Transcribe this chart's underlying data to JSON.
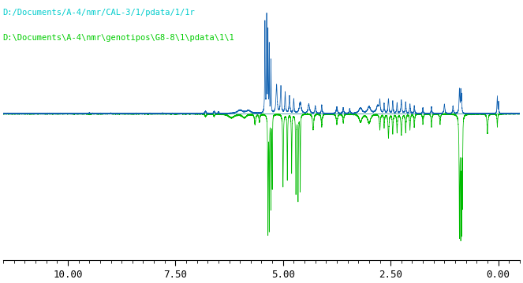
{
  "title_blue": "D:/Documents/A-4/nmr/CAL-3/1/pdata/1/1r",
  "title_green": "D:\\Documents\\A-4\\nmr\\genotipos\\G8-8\\1\\pdata\\1\\1",
  "xmin": -0.5,
  "xmax": 11.5,
  "xlabel_ticks": [
    10.0,
    7.5,
    5.0,
    2.5,
    0.0
  ],
  "blue_color": "#1060b0",
  "green_color": "#00bb00",
  "bg_color": "#ffffff",
  "label_color_blue": "#00cccc",
  "label_color_green": "#00cc00",
  "blue_baseline": 0.56,
  "green_baseline": 0.56,
  "blue_scale": 0.42,
  "green_scale": -0.56
}
